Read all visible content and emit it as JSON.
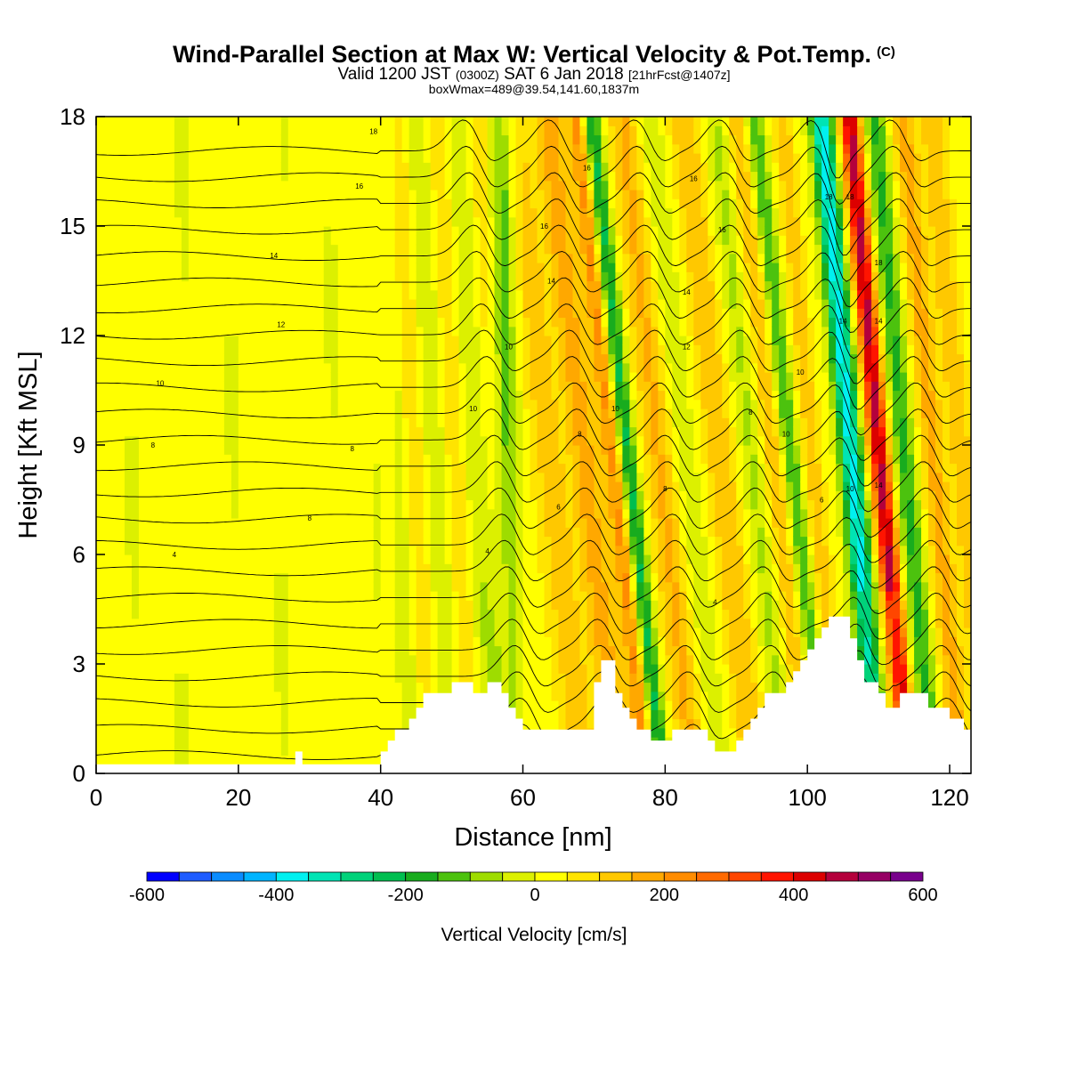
{
  "title": {
    "main": "Wind-Parallel Section at Max W: Vertical Velocity & Pot.Temp.",
    "copyright": "(C)",
    "valid_prefix": "Valid 1200 JST",
    "valid_utc": "(0300Z)",
    "valid_date": "SAT 6 Jan 2018",
    "forecast": "[21hrFcst@1407z]",
    "box_info": "boxWmax=489@39.54,141.60,1837m"
  },
  "chart_data": {
    "type": "heatmap",
    "xlabel": "Distance [nm]",
    "ylabel": "Height [Kft MSL]",
    "xlim": [
      0,
      123
    ],
    "ylim": [
      0,
      18
    ],
    "x_ticks": [
      0,
      20,
      40,
      60,
      80,
      100,
      120
    ],
    "y_ticks": [
      0,
      3,
      6,
      9,
      12,
      15,
      18
    ],
    "colorbar": {
      "label": "Vertical Velocity [cm/s]",
      "ticks": [
        -600,
        -400,
        -200,
        0,
        200,
        400,
        600
      ],
      "levels": [
        -600,
        -550,
        -500,
        -450,
        -400,
        -350,
        -300,
        -250,
        -200,
        -150,
        -100,
        -50,
        0,
        50,
        100,
        150,
        200,
        250,
        300,
        350,
        400,
        450,
        500,
        550,
        600
      ],
      "colors": [
        "#0000ff",
        "#1e5cff",
        "#0a8cff",
        "#00b4ff",
        "#00f0f0",
        "#00e4b4",
        "#00d27a",
        "#00be50",
        "#18ac1e",
        "#4cc20e",
        "#9edc00",
        "#dcf000",
        "#ffff00",
        "#ffe400",
        "#ffc800",
        "#ffa800",
        "#ff8c00",
        "#ff6a00",
        "#ff4600",
        "#ff1400",
        "#dc0000",
        "#b4003c",
        "#960064",
        "#78008c",
        "#6e00aa"
      ]
    },
    "w_peak_features": [
      {
        "kind": "updraft",
        "x_center": 72.5,
        "value": 200
      },
      {
        "kind": "downdraft",
        "x_center": 74.5,
        "value": -250
      },
      {
        "kind": "downdraft",
        "x_center": 106,
        "value": -400
      },
      {
        "kind": "updraft",
        "x_center": 110,
        "value": 450
      }
    ],
    "theta_contour_labels": [
      "4",
      "6",
      "8",
      "10",
      "12",
      "14",
      "16",
      "18"
    ],
    "terrain": [
      [
        0,
        0.25
      ],
      [
        28,
        0.25
      ],
      [
        28,
        0.6
      ],
      [
        29,
        0.6
      ],
      [
        29,
        0.25
      ],
      [
        40,
        0.25
      ],
      [
        40,
        0.6
      ],
      [
        41,
        0.6
      ],
      [
        41,
        0.9
      ],
      [
        42,
        0.9
      ],
      [
        42,
        1.2
      ],
      [
        44,
        1.2
      ],
      [
        44,
        1.5
      ],
      [
        45,
        1.5
      ],
      [
        45,
        1.8
      ],
      [
        46,
        1.8
      ],
      [
        46,
        2.2
      ],
      [
        50,
        2.2
      ],
      [
        50,
        2.5
      ],
      [
        53,
        2.5
      ],
      [
        53,
        2.2
      ],
      [
        55,
        2.2
      ],
      [
        55,
        2.5
      ],
      [
        57,
        2.5
      ],
      [
        57,
        2.2
      ],
      [
        58,
        2.2
      ],
      [
        58,
        1.8
      ],
      [
        59,
        1.8
      ],
      [
        59,
        1.5
      ],
      [
        60,
        1.5
      ],
      [
        60,
        1.2
      ],
      [
        70,
        1.2
      ],
      [
        70,
        2.5
      ],
      [
        71,
        2.5
      ],
      [
        71,
        3.1
      ],
      [
        73,
        3.1
      ],
      [
        73,
        2.2
      ],
      [
        74,
        2.2
      ],
      [
        74,
        1.8
      ],
      [
        75,
        1.8
      ],
      [
        75,
        1.5
      ],
      [
        76,
        1.5
      ],
      [
        76,
        1.2
      ],
      [
        78,
        1.2
      ],
      [
        78,
        0.9
      ],
      [
        81,
        0.9
      ],
      [
        81,
        1.2
      ],
      [
        86,
        1.2
      ],
      [
        86,
        0.9
      ],
      [
        87,
        0.9
      ],
      [
        87,
        0.6
      ],
      [
        90,
        0.6
      ],
      [
        90,
        0.9
      ],
      [
        91,
        0.9
      ],
      [
        91,
        1.2
      ],
      [
        92,
        1.2
      ],
      [
        92,
        1.5
      ],
      [
        93,
        1.5
      ],
      [
        93,
        1.8
      ],
      [
        94,
        1.8
      ],
      [
        94,
        2.2
      ],
      [
        97,
        2.2
      ],
      [
        97,
        2.5
      ],
      [
        98,
        2.5
      ],
      [
        98,
        2.8
      ],
      [
        99,
        2.8
      ],
      [
        99,
        3.1
      ],
      [
        100,
        3.1
      ],
      [
        100,
        3.4
      ],
      [
        101,
        3.4
      ],
      [
        101,
        3.7
      ],
      [
        102,
        3.7
      ],
      [
        102,
        4.0
      ],
      [
        103,
        4.0
      ],
      [
        103,
        4.3
      ],
      [
        106,
        4.3
      ],
      [
        106,
        3.7
      ],
      [
        107,
        3.7
      ],
      [
        107,
        3.1
      ],
      [
        108,
        3.1
      ],
      [
        108,
        2.5
      ],
      [
        110,
        2.5
      ],
      [
        110,
        2.2
      ],
      [
        111,
        2.2
      ],
      [
        111,
        1.8
      ],
      [
        113,
        1.8
      ],
      [
        113,
        2.2
      ],
      [
        117,
        2.2
      ],
      [
        117,
        1.8
      ],
      [
        120,
        1.8
      ],
      [
        120,
        1.5
      ],
      [
        122,
        1.5
      ],
      [
        122,
        1.2
      ],
      [
        123,
        1.2
      ]
    ]
  }
}
